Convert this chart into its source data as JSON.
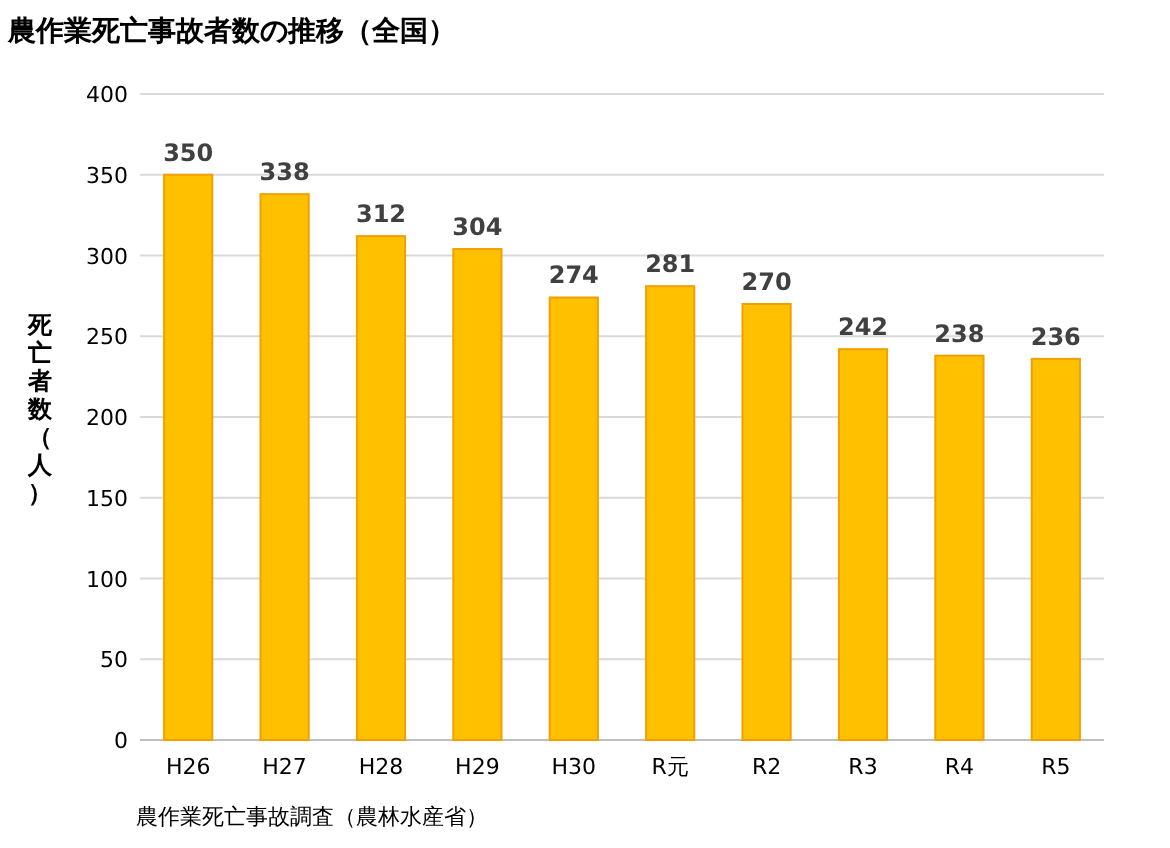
{
  "chart_data": {
    "type": "bar",
    "title": "農作業死亡事故者数の推移（全国）",
    "ylabel": "死亡者数（人）",
    "categories": [
      "H26",
      "H27",
      "H28",
      "H29",
      "H30",
      "R元",
      "R2",
      "R3",
      "R4",
      "R5"
    ],
    "values": [
      350,
      338,
      312,
      304,
      274,
      281,
      270,
      242,
      238,
      236
    ],
    "color": "#ffc000",
    "ylim": [
      0,
      400
    ],
    "yticks": [
      0,
      50,
      100,
      150,
      200,
      250,
      300,
      350,
      400
    ],
    "grid": "y",
    "data_labels": true,
    "annotations": [
      "農作業死亡事故調査（農林水産省）"
    ]
  }
}
